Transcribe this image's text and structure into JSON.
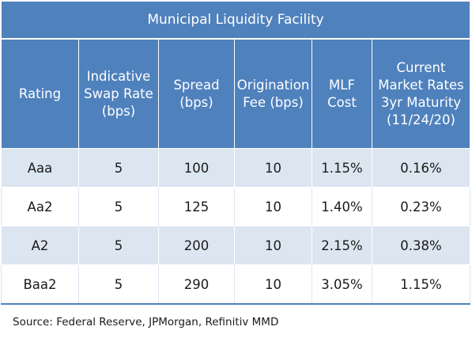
{
  "title": "Municipal Liquidity Facility",
  "headers": [
    "Rating",
    "Indicative\nSwap Rate\n(bps)",
    "Spread\n(bps)",
    "Origination\nFee (bps)",
    "MLF\nCost",
    "Current\nMarket Rates\n3yr Maturity\n(11/24/20)"
  ],
  "rows": [
    [
      "Aaa",
      "5",
      "100",
      "10",
      "1.15%",
      "0.16%"
    ],
    [
      "Aa2",
      "5",
      "125",
      "10",
      "1.40%",
      "0.23%"
    ],
    [
      "A2",
      "5",
      "200",
      "10",
      "2.15%",
      "0.38%"
    ],
    [
      "Baa2",
      "5",
      "290",
      "10",
      "3.05%",
      "1.15%"
    ]
  ],
  "source": "Source: Federal Reserve, JPMorgan, Refinitiv MMD",
  "colors": {
    "header_bg": "#4f81bd",
    "band_bg": "#dce6f1",
    "header_text": "#ffffff"
  }
}
